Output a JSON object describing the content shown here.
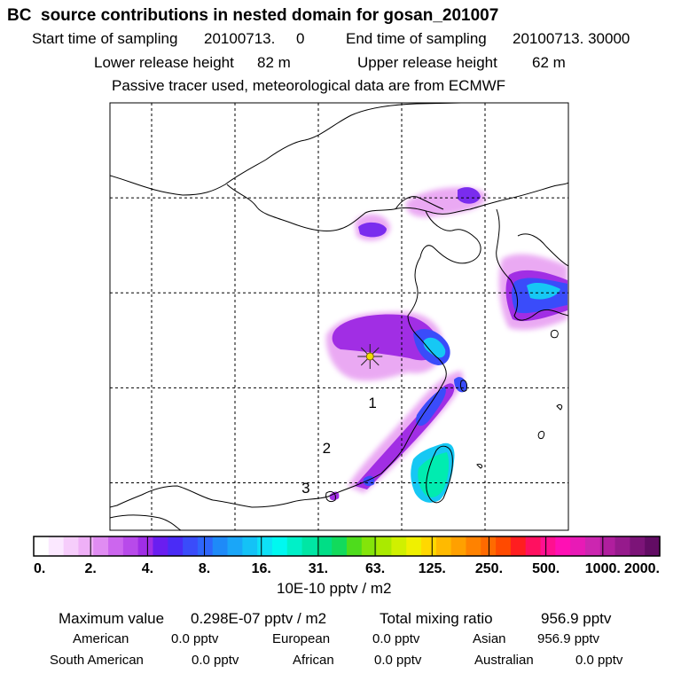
{
  "header": {
    "title": "BC  source contributions in nested domain for gosan_201007",
    "start_label": "Start time of sampling",
    "start_value": "20100713.     0",
    "end_label": "End time of sampling",
    "end_value": "20100713. 30000",
    "lower_label": "Lower release height",
    "lower_value": "82 m",
    "upper_label": "Upper release height",
    "upper_value": "62 m",
    "note": "Passive tracer used, meteorological data are from ECMWF"
  },
  "chart_data": {
    "type": "heatmap",
    "title": "BC  source contributions in nested domain for gosan_201007",
    "colorbar": {
      "unit_label": "10E-10 pptv / m2",
      "tick_labels": [
        "0.",
        "2.",
        "4.",
        "8.",
        "16.",
        "31.",
        "63.",
        "125.",
        "250.",
        "500.",
        "1000.",
        "2000."
      ],
      "colors": [
        "#ffffff",
        "#fbe8ff",
        "#f6cdfb",
        "#efb0f7",
        "#e08cf2",
        "#cc66ee",
        "#b84aea",
        "#a02ee6",
        "#6a1ef0",
        "#4a2cf6",
        "#3a4cfa",
        "#2e66fc",
        "#1e8af8",
        "#1aa6f8",
        "#14c2f6",
        "#0ee0f6",
        "#00f8f0",
        "#00f0c8",
        "#00e6a4",
        "#00de86",
        "#12da5c",
        "#4edc1c",
        "#84e40a",
        "#aaea00",
        "#d0f000",
        "#f0f000",
        "#ffd800",
        "#ffba00",
        "#ffa000",
        "#ff8200",
        "#ff6a00",
        "#ff4a00",
        "#ff1e20",
        "#ff1060",
        "#ff1090",
        "#ff10b4",
        "#e81ab6",
        "#cc26b0",
        "#b01e9e",
        "#961a8c",
        "#7c1478",
        "#620c64"
      ]
    },
    "markers": [
      {
        "label": "1",
        "lon": 126.5,
        "lat": 27.9
      },
      {
        "label": "2",
        "lon": 121.0,
        "lat": 23.1
      },
      {
        "label": "3",
        "lon": 118.5,
        "lat": 18.9
      }
    ],
    "release_site": {
      "name": "gosan",
      "lon": 126.2,
      "lat": 33.3
    },
    "x_range_lon": [
      95,
      150
    ],
    "y_range_lat": [
      15,
      60
    ],
    "grid_lon": [
      100,
      110,
      120,
      130,
      140
    ],
    "grid_lat": [
      20,
      30,
      40,
      50
    ]
  },
  "footer": {
    "max_label": "Maximum value",
    "max_value": "0.298E-07 pptv / m2",
    "total_label": "Total mixing ratio",
    "total_value": "956.9 pptv",
    "regions": [
      {
        "name": "American",
        "value": "0.0 pptv"
      },
      {
        "name": "European",
        "value": "0.0 pptv"
      },
      {
        "name": "Asian",
        "value": "956.9 pptv"
      },
      {
        "name": "South American",
        "value": "0.0 pptv"
      },
      {
        "name": "African",
        "value": "0.0 pptv"
      },
      {
        "name": "Australian",
        "value": "0.0 pptv"
      }
    ]
  }
}
